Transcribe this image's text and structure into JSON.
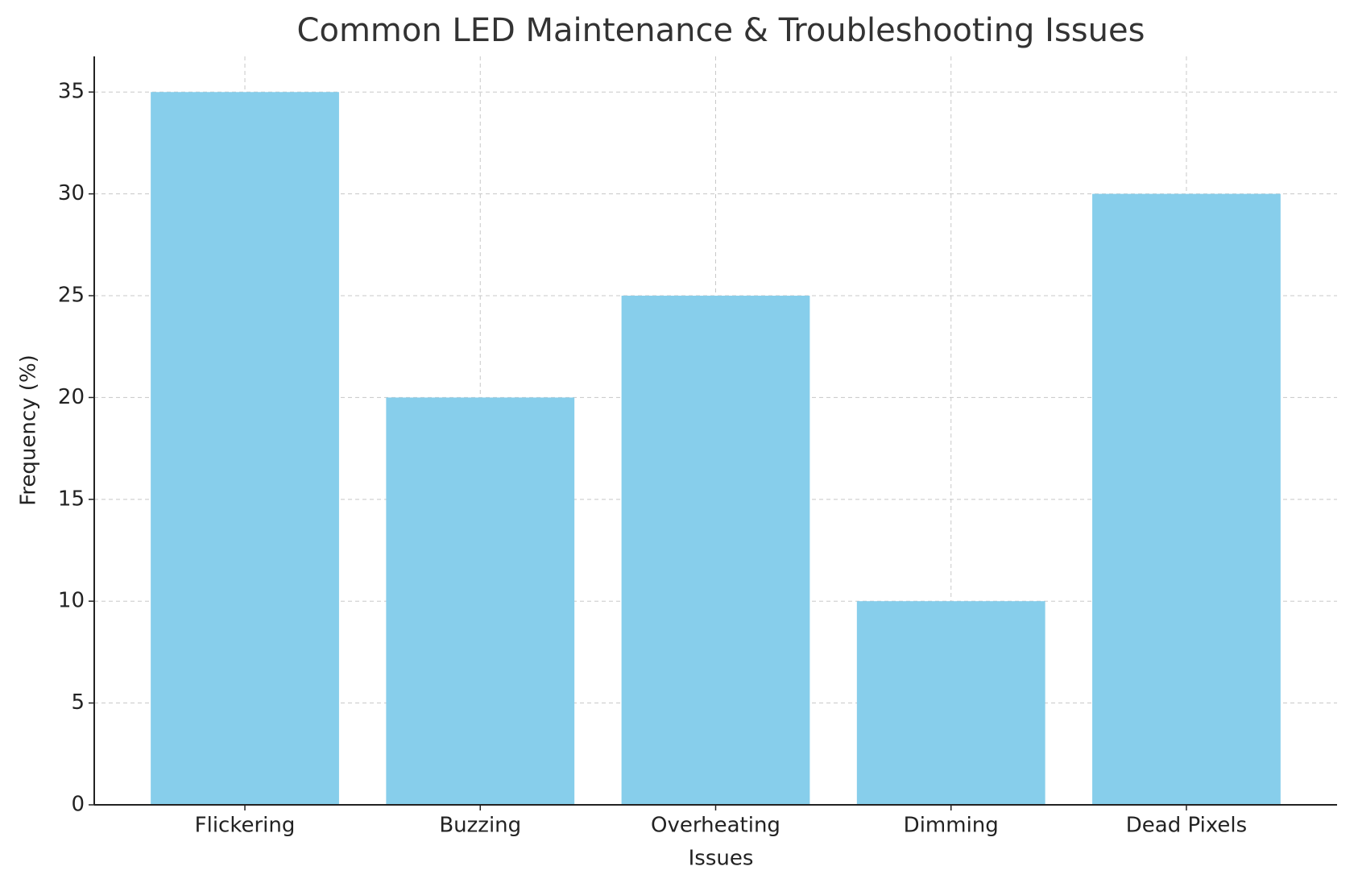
{
  "chart_data": {
    "type": "bar",
    "title": "Common LED Maintenance & Troubleshooting Issues",
    "x_label": "Issues",
    "y_label": "Frequency (%)",
    "categories": [
      "Flickering",
      "Buzzing",
      "Overheating",
      "Dimming",
      "Dead Pixels"
    ],
    "values": [
      35,
      20,
      25,
      10,
      30
    ],
    "color": "#87ceeb",
    "ylim": [
      0,
      36.75
    ],
    "yticks": [
      0,
      5,
      10,
      15,
      20,
      25,
      30,
      35
    ],
    "grid": true
  }
}
